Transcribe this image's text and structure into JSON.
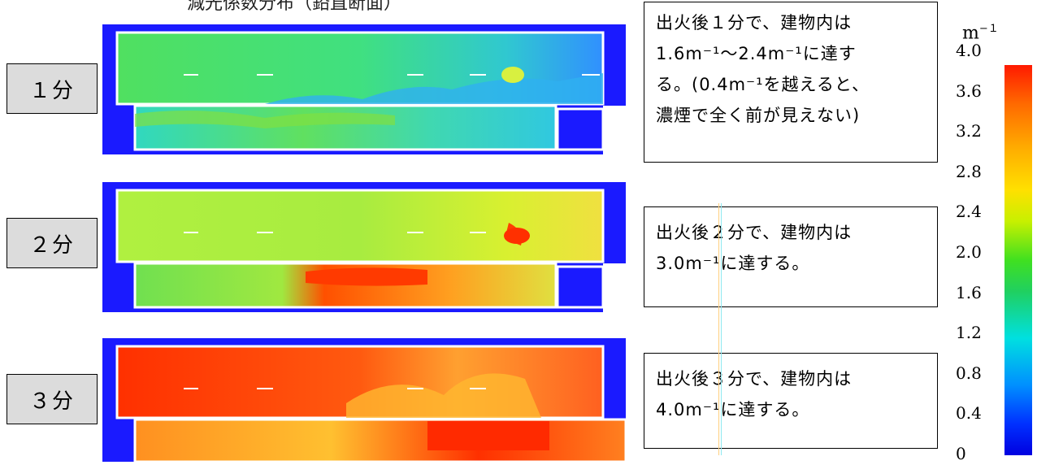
{
  "title_fragment": "減光係数分布（鉛直断面）",
  "panels": [
    {
      "time_label": "１分",
      "level": 1.6
    },
    {
      "time_label": "２分",
      "level": 2.8
    },
    {
      "time_label": "３分",
      "level": 3.7
    }
  ],
  "callouts": [
    {
      "lines": [
        "出火後１分で、建物内は",
        "1.6m⁻¹～2.4m⁻¹に達す",
        "る。(0.4m⁻¹を越えると、",
        "濃煙で全く前が見えない)"
      ]
    },
    {
      "lines": [
        "出火後２分で、建物内は",
        "3.0m⁻¹に達する。"
      ]
    },
    {
      "lines": [
        "出火後３分で、建物内は",
        "4.0m⁻¹に達する。"
      ]
    }
  ],
  "colorbar": {
    "unit_base": "m",
    "unit_exp": "−１",
    "ticks": [
      "4.0",
      "3.6",
      "3.2",
      "2.8",
      "2.4",
      "2.0",
      "1.6",
      "1.2",
      "0.8",
      "0.4",
      "0"
    ],
    "range": [
      0,
      4.0
    ]
  }
}
